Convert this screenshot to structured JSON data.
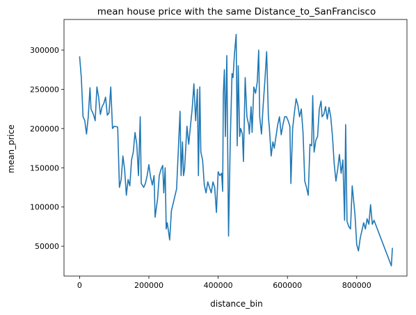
{
  "chart_data": {
    "type": "line",
    "title": "mean house price with the same Distance_to_SanFrancisco",
    "x_label": "distance_bin",
    "y_label": "mean_price",
    "x": [
      0,
      5000,
      10000,
      15000,
      20000,
      25000,
      30000,
      33000,
      40000,
      45000,
      50000,
      55000,
      60000,
      65000,
      70000,
      75000,
      80000,
      85000,
      90000,
      95000,
      100000,
      110000,
      115000,
      120000,
      125000,
      130000,
      135000,
      140000,
      145000,
      150000,
      155000,
      160000,
      165000,
      170000,
      175000,
      178000,
      185000,
      190000,
      195000,
      200000,
      205000,
      210000,
      215000,
      218000,
      225000,
      230000,
      235000,
      240000,
      243000,
      247000,
      250000,
      253000,
      257000,
      260000,
      265000,
      280000,
      290000,
      293000,
      297000,
      300000,
      303000,
      307000,
      310000,
      315000,
      320000,
      325000,
      330000,
      335000,
      340000,
      343000,
      347000,
      350000,
      355000,
      360000,
      365000,
      370000,
      375000,
      380000,
      385000,
      390000,
      395000,
      400000,
      405000,
      410000,
      413000,
      415000,
      418000,
      421000,
      425000,
      430000,
      435000,
      440000,
      443000,
      447000,
      452000,
      455000,
      458000,
      462000,
      465000,
      470000,
      473000,
      478000,
      483000,
      488000,
      490000,
      495000,
      498000,
      503000,
      508000,
      513000,
      517000,
      520000,
      525000,
      530000,
      535000,
      540000,
      545000,
      548000,
      553000,
      558000,
      562000,
      567000,
      572000,
      577000,
      582000,
      587000,
      592000,
      597000,
      602000,
      607000,
      610000,
      615000,
      620000,
      625000,
      630000,
      635000,
      640000,
      645000,
      650000,
      655000,
      660000,
      665000,
      670000,
      673000,
      677000,
      682000,
      687000,
      692000,
      697000,
      700000,
      705000,
      710000,
      715000,
      720000,
      725000,
      730000,
      735000,
      740000,
      745000,
      750000,
      755000,
      760000,
      765000,
      768000,
      772000,
      777000,
      782000,
      787000,
      790000,
      795000,
      800000,
      805000,
      810000,
      815000,
      820000,
      825000,
      830000,
      835000,
      840000,
      845000,
      850000,
      900000,
      903000
    ],
    "series": [
      {
        "name": "mean_price",
        "color": "#1f77b4",
        "values": [
          292000,
          265000,
          215000,
          210000,
          193000,
          215000,
          252000,
          225000,
          218000,
          210000,
          253000,
          240000,
          218000,
          228000,
          232000,
          240000,
          217000,
          220000,
          253000,
          200000,
          203000,
          202000,
          125000,
          135000,
          165000,
          148000,
          115000,
          135000,
          127000,
          160000,
          170000,
          195000,
          180000,
          140000,
          215000,
          130000,
          125000,
          130000,
          140000,
          154000,
          138000,
          128000,
          140000,
          87000,
          110000,
          140000,
          148000,
          153000,
          118000,
          150000,
          72000,
          80000,
          68000,
          58000,
          95000,
          123000,
          222000,
          140000,
          183000,
          140000,
          148000,
          180000,
          203000,
          180000,
          203000,
          225000,
          257000,
          210000,
          250000,
          140000,
          253000,
          170000,
          160000,
          128000,
          118000,
          132000,
          125000,
          118000,
          132000,
          125000,
          93000,
          145000,
          140000,
          143000,
          120000,
          245000,
          275000,
          190000,
          293000,
          63000,
          185000,
          270000,
          265000,
          295000,
          320000,
          178000,
          280000,
          190000,
          200000,
          193000,
          158000,
          265000,
          215000,
          205000,
          193000,
          228000,
          195000,
          253000,
          245000,
          260000,
          300000,
          215000,
          193000,
          230000,
          262000,
          298000,
          215000,
          200000,
          165000,
          183000,
          175000,
          190000,
          205000,
          215000,
          192000,
          205000,
          215000,
          215000,
          210000,
          203000,
          130000,
          200000,
          220000,
          238000,
          230000,
          215000,
          225000,
          195000,
          133000,
          125000,
          115000,
          180000,
          178000,
          242000,
          170000,
          185000,
          190000,
          225000,
          235000,
          215000,
          218000,
          228000,
          212000,
          227000,
          215000,
          190000,
          155000,
          133000,
          148000,
          167000,
          143000,
          160000,
          83000,
          205000,
          82000,
          75000,
          72000,
          127000,
          113000,
          90000,
          52000,
          44000,
          60000,
          70000,
          80000,
          72000,
          85000,
          78000,
          103000,
          78000,
          83000,
          25000,
          48000
        ]
      }
    ],
    "xlim": [
      -45000,
      945000
    ],
    "ylim": [
      12000,
      339000
    ],
    "xticks": [
      0,
      200000,
      400000,
      600000,
      800000
    ],
    "yticks": [
      50000,
      100000,
      150000,
      200000,
      250000,
      300000
    ]
  }
}
